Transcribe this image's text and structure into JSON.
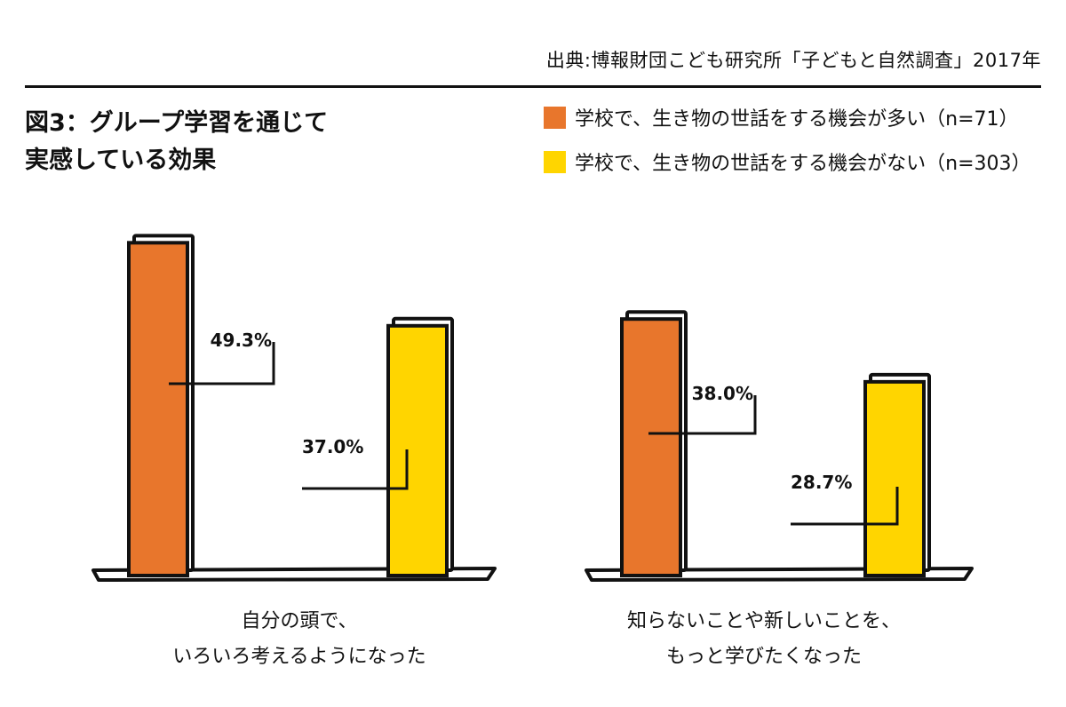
{
  "source": "出典:博報財団こども研究所「子どもと自然調査」2017年",
  "title_line1": "図3：グループ学習を通じて",
  "title_line2": "実感している効果",
  "chart_data": {
    "type": "bar",
    "categories": [
      "自分の頭で、\nいろいろ考えるようになった",
      "知らないことや新しいことを、\nもっと学びたくなった"
    ],
    "category_lines": [
      [
        "自分の頭で、",
        "いろいろ考えるようになった"
      ],
      [
        "知らないことや新しいことを、",
        "もっと学びたくなった"
      ]
    ],
    "series": [
      {
        "name": "学校で、生き物の世話をする機会が多い（n=71）",
        "color": "#E8762C",
        "values": [
          49.3,
          38.0
        ]
      },
      {
        "name": "学校で、生き物の世話をする機会がない（n=303）",
        "color": "#FFD500",
        "values": [
          37.0,
          28.7
        ]
      }
    ],
    "value_labels": [
      [
        "49.3%",
        "37.0%"
      ],
      [
        "38.0%",
        "28.7%"
      ]
    ],
    "unit": "%",
    "legend_position": "top-right",
    "grid": false
  }
}
